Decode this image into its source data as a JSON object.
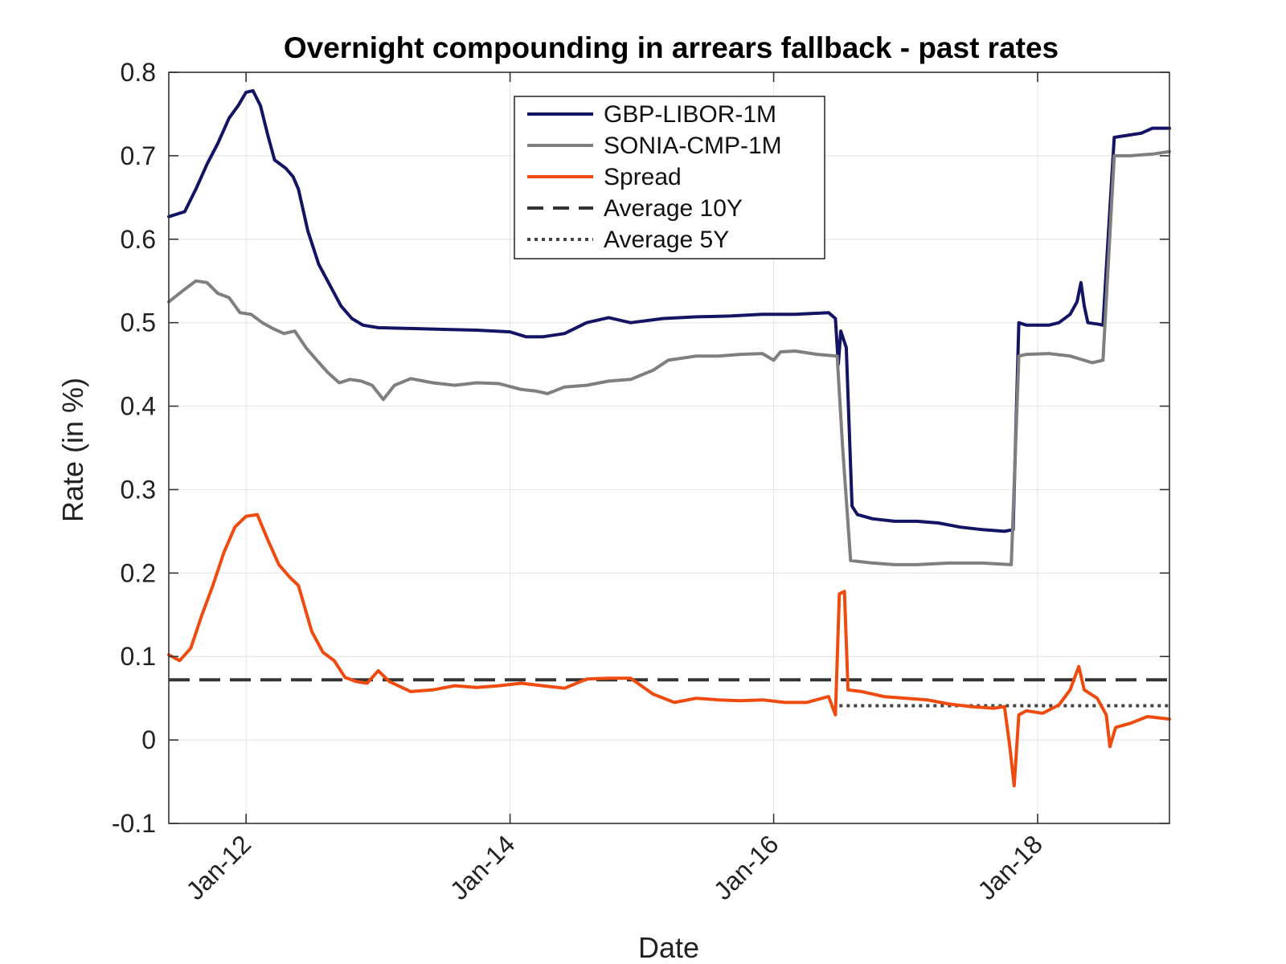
{
  "chart_data": {
    "type": "line",
    "title": "Overnight compounding in arrears fallback - past rates",
    "xlabel": "Date",
    "ylabel": "Rate (in %)",
    "xlim": [
      "2011-06-01",
      "2019-01-01"
    ],
    "ylim": [
      -0.1,
      0.8
    ],
    "x_ticks": [
      {
        "date": "2012-01-01",
        "label": "Jan-12"
      },
      {
        "date": "2014-01-01",
        "label": "Jan-14"
      },
      {
        "date": "2016-01-01",
        "label": "Jan-16"
      },
      {
        "date": "2018-01-01",
        "label": "Jan-18"
      }
    ],
    "y_ticks": [
      {
        "value": 0.8,
        "label": "0.8"
      },
      {
        "value": 0.7,
        "label": "0.7"
      },
      {
        "value": 0.6,
        "label": "0.6"
      },
      {
        "value": 0.5,
        "label": "0.5"
      },
      {
        "value": 0.4,
        "label": "0.4"
      },
      {
        "value": 0.3,
        "label": "0.3"
      },
      {
        "value": 0.2,
        "label": "0.2"
      },
      {
        "value": 0.1,
        "label": "0.1"
      },
      {
        "value": 0.0,
        "label": "0"
      },
      {
        "value": -0.1,
        "label": "-0.1"
      }
    ],
    "grid": true,
    "legend_position": "top-center",
    "series": [
      {
        "name": "GBP-LIBOR-1M",
        "color": "#141464",
        "style": "solid",
        "points": [
          [
            "2011-06-01",
            0.627
          ],
          [
            "2011-07-15",
            0.633
          ],
          [
            "2011-08-15",
            0.66
          ],
          [
            "2011-09-15",
            0.69
          ],
          [
            "2011-10-15",
            0.715
          ],
          [
            "2011-11-15",
            0.745
          ],
          [
            "2011-12-10",
            0.76
          ],
          [
            "2012-01-01",
            0.776
          ],
          [
            "2012-01-20",
            0.778
          ],
          [
            "2012-02-10",
            0.76
          ],
          [
            "2012-03-01",
            0.725
          ],
          [
            "2012-03-20",
            0.695
          ],
          [
            "2012-04-20",
            0.685
          ],
          [
            "2012-05-10",
            0.675
          ],
          [
            "2012-05-25",
            0.66
          ],
          [
            "2012-06-20",
            0.61
          ],
          [
            "2012-07-20",
            0.57
          ],
          [
            "2012-08-20",
            0.545
          ],
          [
            "2012-09-20",
            0.52
          ],
          [
            "2012-10-20",
            0.505
          ],
          [
            "2012-11-20",
            0.497
          ],
          [
            "2013-01-01",
            0.494
          ],
          [
            "2013-04-01",
            0.493
          ],
          [
            "2013-07-01",
            0.492
          ],
          [
            "2013-10-01",
            0.491
          ],
          [
            "2014-01-01",
            0.489
          ],
          [
            "2014-02-15",
            0.483
          ],
          [
            "2014-04-01",
            0.483
          ],
          [
            "2014-06-01",
            0.487
          ],
          [
            "2014-08-01",
            0.5
          ],
          [
            "2014-10-01",
            0.506
          ],
          [
            "2014-12-01",
            0.5
          ],
          [
            "2015-03-01",
            0.505
          ],
          [
            "2015-06-01",
            0.507
          ],
          [
            "2015-09-01",
            0.508
          ],
          [
            "2015-12-01",
            0.51
          ],
          [
            "2016-03-01",
            0.51
          ],
          [
            "2016-06-01",
            0.512
          ],
          [
            "2016-06-20",
            0.505
          ],
          [
            "2016-06-28",
            0.45
          ],
          [
            "2016-07-05",
            0.49
          ],
          [
            "2016-07-20",
            0.47
          ],
          [
            "2016-08-05",
            0.28
          ],
          [
            "2016-08-20",
            0.27
          ],
          [
            "2016-10-01",
            0.265
          ],
          [
            "2016-12-01",
            0.262
          ],
          [
            "2017-02-01",
            0.262
          ],
          [
            "2017-04-01",
            0.26
          ],
          [
            "2017-06-01",
            0.255
          ],
          [
            "2017-08-01",
            0.252
          ],
          [
            "2017-10-01",
            0.25
          ],
          [
            "2017-10-25",
            0.252
          ],
          [
            "2017-11-10",
            0.5
          ],
          [
            "2017-12-01",
            0.497
          ],
          [
            "2018-02-01",
            0.497
          ],
          [
            "2018-03-01",
            0.5
          ],
          [
            "2018-04-01",
            0.51
          ],
          [
            "2018-04-20",
            0.525
          ],
          [
            "2018-05-01",
            0.548
          ],
          [
            "2018-05-10",
            0.52
          ],
          [
            "2018-05-20",
            0.5
          ],
          [
            "2018-06-20",
            0.498
          ],
          [
            "2018-07-01",
            0.497
          ],
          [
            "2018-07-15",
            0.6
          ],
          [
            "2018-08-01",
            0.722
          ],
          [
            "2018-09-15",
            0.725
          ],
          [
            "2018-10-15",
            0.727
          ],
          [
            "2018-11-15",
            0.733
          ],
          [
            "2019-01-01",
            0.733
          ]
        ]
      },
      {
        "name": "SONIA-CMP-1M",
        "color": "#7f7f7f",
        "style": "solid",
        "points": [
          [
            "2011-06-01",
            0.525
          ],
          [
            "2011-07-15",
            0.54
          ],
          [
            "2011-08-15",
            0.55
          ],
          [
            "2011-09-15",
            0.548
          ],
          [
            "2011-10-15",
            0.535
          ],
          [
            "2011-11-15",
            0.53
          ],
          [
            "2011-12-15",
            0.512
          ],
          [
            "2012-01-15",
            0.51
          ],
          [
            "2012-02-15",
            0.5
          ],
          [
            "2012-03-15",
            0.493
          ],
          [
            "2012-04-15",
            0.487
          ],
          [
            "2012-05-15",
            0.49
          ],
          [
            "2012-06-15",
            0.47
          ],
          [
            "2012-07-15",
            0.455
          ],
          [
            "2012-08-15",
            0.44
          ],
          [
            "2012-09-15",
            0.428
          ],
          [
            "2012-10-15",
            0.432
          ],
          [
            "2012-11-15",
            0.43
          ],
          [
            "2012-12-15",
            0.425
          ],
          [
            "2013-01-15",
            0.408
          ],
          [
            "2013-02-15",
            0.425
          ],
          [
            "2013-04-01",
            0.433
          ],
          [
            "2013-06-01",
            0.428
          ],
          [
            "2013-08-01",
            0.425
          ],
          [
            "2013-10-01",
            0.428
          ],
          [
            "2013-12-01",
            0.427
          ],
          [
            "2014-02-01",
            0.42
          ],
          [
            "2014-03-15",
            0.418
          ],
          [
            "2014-04-15",
            0.415
          ],
          [
            "2014-06-01",
            0.423
          ],
          [
            "2014-08-01",
            0.425
          ],
          [
            "2014-10-01",
            0.43
          ],
          [
            "2014-12-01",
            0.432
          ],
          [
            "2015-02-01",
            0.443
          ],
          [
            "2015-03-15",
            0.455
          ],
          [
            "2015-06-01",
            0.46
          ],
          [
            "2015-08-01",
            0.46
          ],
          [
            "2015-10-01",
            0.462
          ],
          [
            "2015-12-01",
            0.463
          ],
          [
            "2016-01-01",
            0.455
          ],
          [
            "2016-01-20",
            0.465
          ],
          [
            "2016-03-01",
            0.466
          ],
          [
            "2016-05-01",
            0.462
          ],
          [
            "2016-06-25",
            0.46
          ],
          [
            "2016-07-10",
            0.35
          ],
          [
            "2016-08-01",
            0.215
          ],
          [
            "2016-10-01",
            0.212
          ],
          [
            "2016-12-01",
            0.21
          ],
          [
            "2017-02-01",
            0.21
          ],
          [
            "2017-05-01",
            0.212
          ],
          [
            "2017-08-01",
            0.212
          ],
          [
            "2017-10-20",
            0.21
          ],
          [
            "2017-11-10",
            0.46
          ],
          [
            "2017-12-01",
            0.462
          ],
          [
            "2018-02-01",
            0.463
          ],
          [
            "2018-04-01",
            0.46
          ],
          [
            "2018-06-01",
            0.452
          ],
          [
            "2018-07-01",
            0.455
          ],
          [
            "2018-08-01",
            0.7
          ],
          [
            "2018-09-15",
            0.7
          ],
          [
            "2018-11-15",
            0.702
          ],
          [
            "2019-01-01",
            0.705
          ]
        ]
      },
      {
        "name": "Spread",
        "color": "#f04b0f",
        "style": "solid",
        "points": [
          [
            "2011-06-01",
            0.102
          ],
          [
            "2011-07-01",
            0.095
          ],
          [
            "2011-08-01",
            0.11
          ],
          [
            "2011-09-01",
            0.15
          ],
          [
            "2011-10-01",
            0.185
          ],
          [
            "2011-11-01",
            0.225
          ],
          [
            "2011-12-01",
            0.255
          ],
          [
            "2012-01-01",
            0.268
          ],
          [
            "2012-02-01",
            0.27
          ],
          [
            "2012-03-01",
            0.24
          ],
          [
            "2012-04-01",
            0.21
          ],
          [
            "2012-05-01",
            0.195
          ],
          [
            "2012-05-25",
            0.185
          ],
          [
            "2012-07-01",
            0.13
          ],
          [
            "2012-08-01",
            0.105
          ],
          [
            "2012-09-01",
            0.095
          ],
          [
            "2012-10-01",
            0.075
          ],
          [
            "2012-11-01",
            0.07
          ],
          [
            "2012-12-01",
            0.068
          ],
          [
            "2013-01-01",
            0.083
          ],
          [
            "2013-02-01",
            0.07
          ],
          [
            "2013-04-01",
            0.058
          ],
          [
            "2013-06-01",
            0.06
          ],
          [
            "2013-08-01",
            0.065
          ],
          [
            "2013-10-01",
            0.063
          ],
          [
            "2013-12-01",
            0.065
          ],
          [
            "2014-02-01",
            0.068
          ],
          [
            "2014-04-01",
            0.065
          ],
          [
            "2014-06-01",
            0.062
          ],
          [
            "2014-08-01",
            0.073
          ],
          [
            "2014-10-01",
            0.074
          ],
          [
            "2014-12-01",
            0.074
          ],
          [
            "2015-02-01",
            0.055
          ],
          [
            "2015-04-01",
            0.045
          ],
          [
            "2015-06-01",
            0.05
          ],
          [
            "2015-08-01",
            0.048
          ],
          [
            "2015-10-01",
            0.047
          ],
          [
            "2015-12-01",
            0.048
          ],
          [
            "2016-02-01",
            0.045
          ],
          [
            "2016-04-01",
            0.045
          ],
          [
            "2016-06-01",
            0.052
          ],
          [
            "2016-06-20",
            0.03
          ],
          [
            "2016-07-01",
            0.175
          ],
          [
            "2016-07-15",
            0.178
          ],
          [
            "2016-07-25",
            0.06
          ],
          [
            "2016-09-01",
            0.058
          ],
          [
            "2016-11-01",
            0.052
          ],
          [
            "2017-01-01",
            0.05
          ],
          [
            "2017-03-01",
            0.048
          ],
          [
            "2017-05-01",
            0.043
          ],
          [
            "2017-07-01",
            0.04
          ],
          [
            "2017-09-01",
            0.038
          ],
          [
            "2017-10-01",
            0.04
          ],
          [
            "2017-10-15",
            -0.005
          ],
          [
            "2017-10-28",
            -0.055
          ],
          [
            "2017-11-10",
            0.03
          ],
          [
            "2017-12-01",
            0.035
          ],
          [
            "2018-01-15",
            0.032
          ],
          [
            "2018-03-01",
            0.042
          ],
          [
            "2018-04-01",
            0.06
          ],
          [
            "2018-04-25",
            0.088
          ],
          [
            "2018-05-10",
            0.06
          ],
          [
            "2018-06-15",
            0.05
          ],
          [
            "2018-07-10",
            0.03
          ],
          [
            "2018-07-20",
            -0.008
          ],
          [
            "2018-08-05",
            0.015
          ],
          [
            "2018-09-15",
            0.02
          ],
          [
            "2018-11-01",
            0.028
          ],
          [
            "2019-01-01",
            0.025
          ]
        ]
      },
      {
        "name": "Average 10Y",
        "color": "#333333",
        "style": "dashed",
        "points": [
          [
            "2011-06-01",
            0.072
          ],
          [
            "2019-01-01",
            0.072
          ]
        ]
      },
      {
        "name": "Average 5Y",
        "color": "#444444",
        "style": "dotted",
        "points": [
          [
            "2016-07-01",
            0.041
          ],
          [
            "2019-01-01",
            0.041
          ]
        ]
      }
    ]
  }
}
